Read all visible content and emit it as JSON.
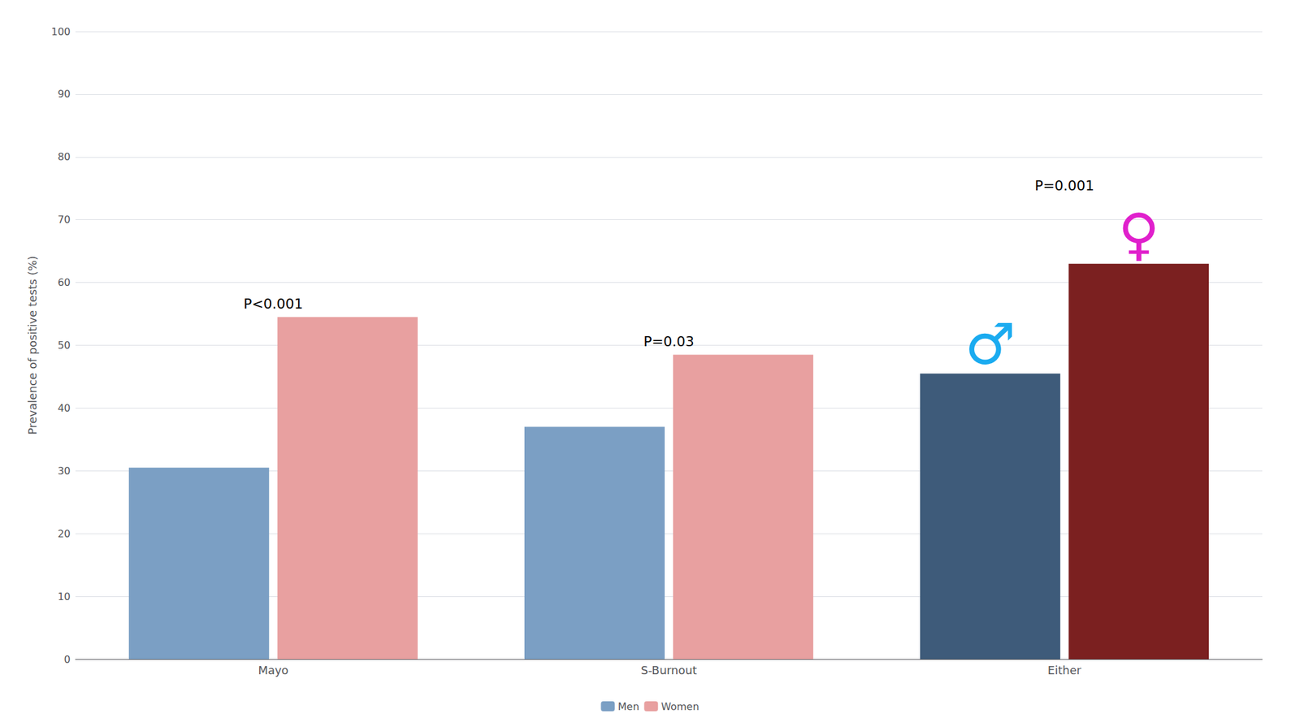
{
  "chart_data": {
    "type": "bar",
    "categories": [
      "Mayo",
      "S-Burnout",
      "Either"
    ],
    "series": [
      {
        "name": "Men",
        "color": "#7B9FC4",
        "colors": [
          "#7B9FC4",
          "#7B9FC4",
          "#3E5B7A"
        ],
        "values": [
          30.5,
          37.0,
          45.5
        ]
      },
      {
        "name": "Women",
        "color": "#E8A0A0",
        "colors": [
          "#E8A0A0",
          "#E8A0A0",
          "#7B2020"
        ],
        "values": [
          54.5,
          48.5,
          63.0
        ]
      }
    ],
    "ylabel": "Prevalence of positive tests (%)",
    "ylim": [
      0,
      100
    ],
    "yticks": [
      0,
      10,
      20,
      30,
      40,
      50,
      60,
      70,
      80,
      90,
      100
    ],
    "grid": true,
    "legend": "bottom",
    "annotations": [
      {
        "text": "P<0.001",
        "category": "Mayo"
      },
      {
        "text": "P=0.03",
        "category": "S-Burnout"
      },
      {
        "text": "P=0.001",
        "category": "Either"
      },
      {
        "text": "♂",
        "category": "Either",
        "series": "Men",
        "color": "#1AABF0"
      },
      {
        "text": "♀",
        "category": "Either",
        "series": "Women",
        "color": "#E020CC"
      }
    ]
  }
}
